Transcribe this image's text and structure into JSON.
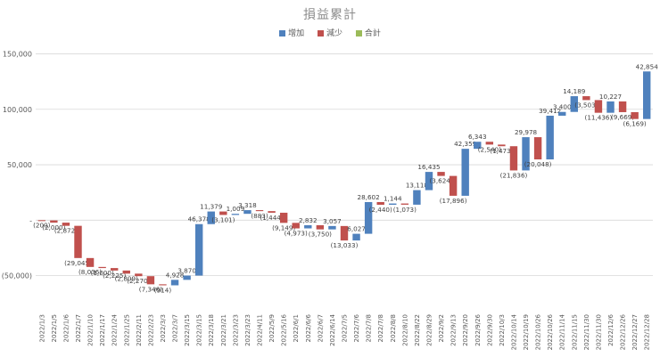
{
  "chart_data": {
    "type": "waterfall",
    "title": "損益累計",
    "legend": [
      {
        "label": "增加",
        "color": "#4f81bd"
      },
      {
        "label": "減少",
        "color": "#c0504d"
      },
      {
        "label": "合計",
        "color": "#9bbb59"
      }
    ],
    "ylim": [
      -80000,
      160000
    ],
    "yticks": [
      -50000,
      0,
      50000,
      100000,
      150000
    ],
    "ytick_labels": [
      "(50,000)",
      "-",
      "50,000",
      "100,000",
      "150,000"
    ],
    "categories": [
      "2022/1/3",
      "2022/1/5",
      "2022/1/6",
      "2022/1/7",
      "2022/1/10",
      "2022/1/17",
      "2022/1/24",
      "2022/1/25",
      "2022/2/11",
      "2022/2/23",
      "2022/3/3",
      "2022/3/7",
      "2022/3/15",
      "2022/3/15",
      "2022/3/18",
      "2022/3/21",
      "2022/3/23",
      "2022/3/23",
      "2022/4/11",
      "2022/5/9",
      "2022/5/16",
      "2022/6/1",
      "2022/6/6",
      "2022/6/7",
      "2022/6/14",
      "2022/7/5",
      "2022/7/6",
      "2022/7/8",
      "2022/7/8",
      "2022/8/8",
      "2022/8/10",
      "2022/8/22",
      "2022/8/29",
      "2022/9/2",
      "2022/9/13",
      "2022/9/20",
      "2022/9/26",
      "2022/9/30",
      "2022/10/3",
      "2022/10/14",
      "2022/10/19",
      "2022/10/26",
      "2022/10/26",
      "2022/11/14",
      "2022/11/15",
      "2022/11/30",
      "2022/11/30",
      "2022/12/6",
      "2022/12/26",
      "2022/12/27",
      "2022/12/28"
    ],
    "values": [
      -200,
      -2000,
      -2872,
      -29045,
      -8036,
      -1000,
      -2225,
      -2809,
      -2270,
      -7346,
      -914,
      4928,
      3870,
      46378,
      11379,
      -3101,
      1009,
      3318,
      -883,
      -1444,
      -9149,
      -4973,
      2832,
      -3750,
      3057,
      -13033,
      6027,
      28602,
      -2440,
      1144,
      -1073,
      13118,
      16435,
      -3624,
      -17896,
      42359,
      6343,
      -2540,
      -1473,
      -21836,
      29978,
      -20048,
      39412,
      3400,
      14189,
      -3503,
      -11436,
      10227,
      -9669,
      -6169,
      42854
    ],
    "data_labels": [
      "(200)",
      "(2,000)",
      "(2,872)",
      "(29,045)",
      "(8,036)",
      "(1,000)",
      "(2,225)",
      "(2,809)",
      "(2,270)",
      "(7,346)",
      "(914)",
      "4,928",
      "3,870",
      "46,378",
      "11,379",
      "(3,101)",
      "1,009",
      "3,318",
      "(883)",
      "(1,444)",
      "(9,149)",
      "(4,973)",
      "2,832",
      "(3,750)",
      "3,057",
      "(13,033)",
      "6,027",
      "28,602",
      "(2,440)",
      "1,144",
      "(1,073)",
      "13,118",
      "16,435",
      "(3,624)",
      "(17,896)",
      "42,359",
      "6,343",
      "(2,540)",
      "(1,473)",
      "(21,836)",
      "29,978",
      "(20,048)",
      "39,412",
      "3,400",
      "14,189",
      "(3,503)",
      "(11,436)",
      "10,227",
      "(9,669)",
      "(6,169)",
      "42,854"
    ]
  }
}
